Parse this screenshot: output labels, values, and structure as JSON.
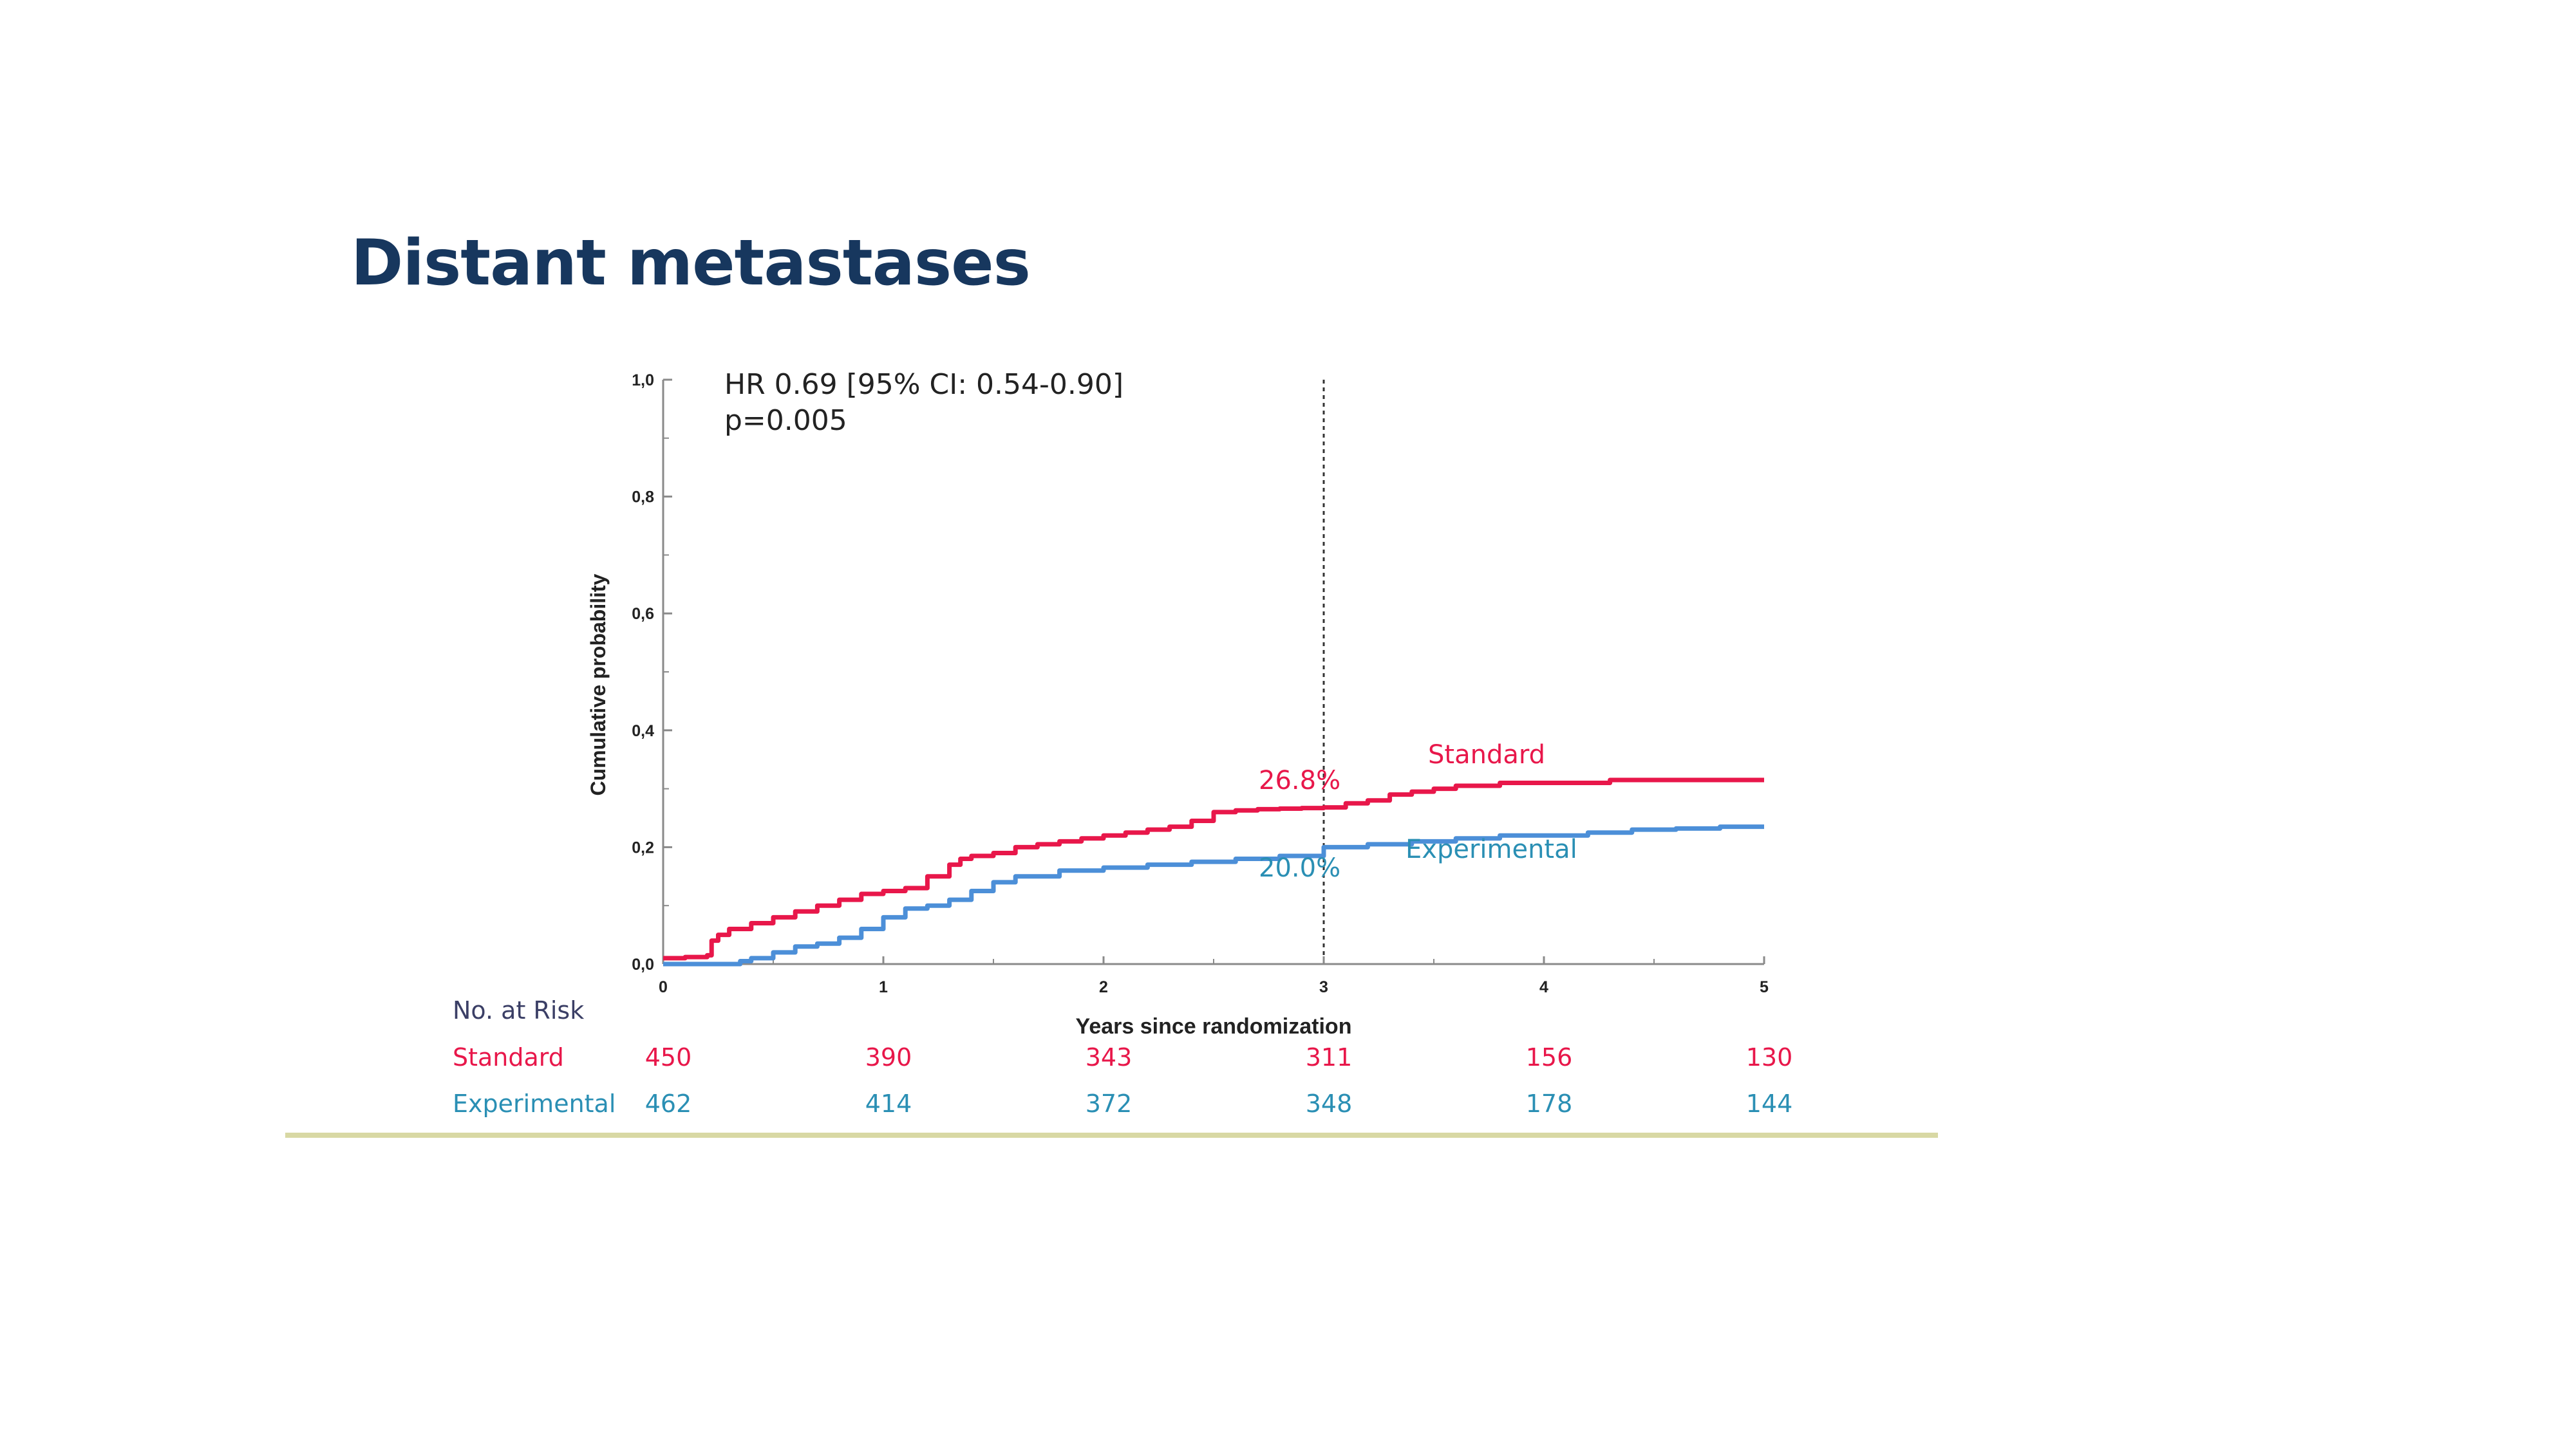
{
  "slide": {
    "title": "Distant metastases"
  },
  "chart_data": {
    "type": "line",
    "subtype": "kaplan-meier cumulative incidence",
    "xlabel": "Years since randomization",
    "ylabel": "Cumulative probability",
    "xlim": [
      0,
      5
    ],
    "ylim": [
      0,
      1.0
    ],
    "x_ticks": [
      "0",
      "1",
      "2",
      "3",
      "4",
      "5"
    ],
    "y_ticks": [
      "0,0",
      "0,2",
      "0,4",
      "0,6",
      "0,8",
      "1,0"
    ],
    "grid": false,
    "reference_line_x": 3,
    "annotations": {
      "hr": "HR 0.69 [95% CI: 0.54-0.90]",
      "p": "p=0.005"
    },
    "series": [
      {
        "name": "Standard",
        "color": "#e8174a",
        "label_at_3y": "26.8%",
        "x": [
          0,
          0.05,
          0.1,
          0.2,
          0.22,
          0.25,
          0.3,
          0.4,
          0.5,
          0.6,
          0.7,
          0.8,
          0.9,
          1.0,
          1.1,
          1.2,
          1.3,
          1.35,
          1.4,
          1.5,
          1.6,
          1.7,
          1.8,
          1.9,
          2.0,
          2.1,
          2.2,
          2.3,
          2.4,
          2.5,
          2.6,
          2.7,
          2.8,
          2.9,
          3.0,
          3.1,
          3.2,
          3.3,
          3.4,
          3.5,
          3.6,
          3.8,
          4.0,
          4.3,
          4.6,
          5.0
        ],
        "y": [
          0.01,
          0.01,
          0.012,
          0.015,
          0.04,
          0.05,
          0.06,
          0.07,
          0.08,
          0.09,
          0.1,
          0.11,
          0.12,
          0.125,
          0.13,
          0.15,
          0.17,
          0.18,
          0.185,
          0.19,
          0.2,
          0.205,
          0.21,
          0.215,
          0.22,
          0.225,
          0.23,
          0.235,
          0.245,
          0.26,
          0.263,
          0.265,
          0.266,
          0.267,
          0.268,
          0.275,
          0.28,
          0.29,
          0.295,
          0.3,
          0.305,
          0.31,
          0.31,
          0.315,
          0.315,
          0.315
        ]
      },
      {
        "name": "Experimental",
        "color": "#4c8fd8",
        "label_at_3y": "20.0%",
        "x": [
          0,
          0.2,
          0.35,
          0.4,
          0.5,
          0.6,
          0.7,
          0.8,
          0.9,
          1.0,
          1.1,
          1.2,
          1.3,
          1.4,
          1.5,
          1.6,
          1.8,
          2.0,
          2.2,
          2.4,
          2.6,
          2.8,
          3.0,
          3.2,
          3.4,
          3.6,
          3.8,
          4.0,
          4.2,
          4.4,
          4.6,
          4.8,
          5.0
        ],
        "y": [
          0,
          0,
          0.005,
          0.01,
          0.02,
          0.03,
          0.035,
          0.045,
          0.06,
          0.08,
          0.095,
          0.1,
          0.11,
          0.125,
          0.14,
          0.15,
          0.16,
          0.165,
          0.17,
          0.175,
          0.18,
          0.185,
          0.2,
          0.205,
          0.21,
          0.215,
          0.22,
          0.22,
          0.225,
          0.23,
          0.232,
          0.235,
          0.235
        ]
      }
    ],
    "risk_table": {
      "heading": "No. at Risk",
      "times": [
        0,
        1,
        2,
        3,
        4,
        5
      ],
      "rows": [
        {
          "label": "Standard",
          "color": "#e8174a",
          "values": [
            "450",
            "390",
            "343",
            "311",
            "156",
            "130"
          ]
        },
        {
          "label": "Experimental",
          "color": "#2a8fb4",
          "values": [
            "462",
            "414",
            "372",
            "348",
            "178",
            "144"
          ]
        }
      ]
    }
  }
}
